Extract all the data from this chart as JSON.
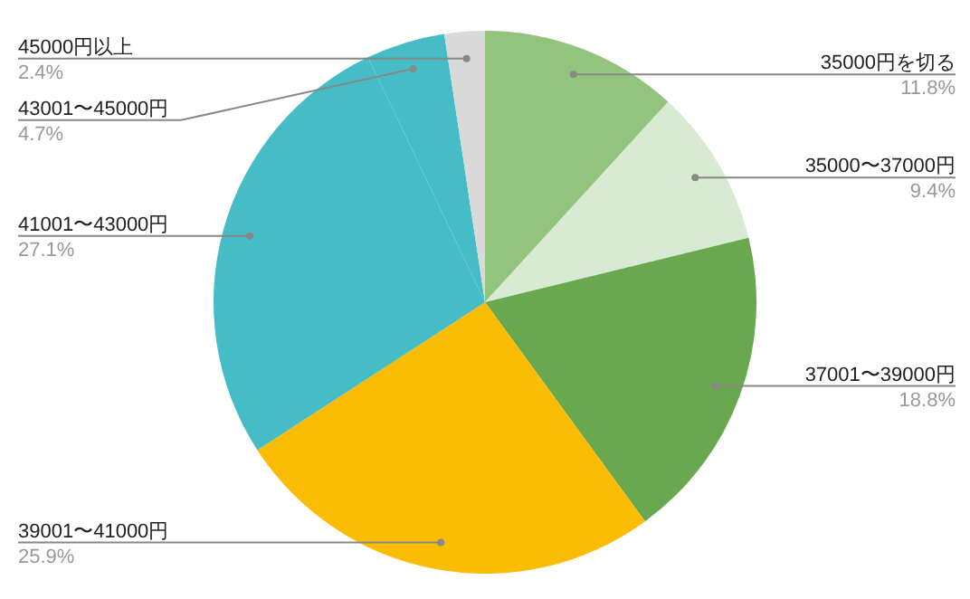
{
  "chart_data": {
    "type": "pie",
    "categories": [
      "35000円を切る",
      "35000〜37000円",
      "37001〜39000円",
      "39001〜41000円",
      "41001〜43000円",
      "43001〜45000円",
      "45000円以上"
    ],
    "values": [
      11.8,
      9.4,
      18.8,
      25.9,
      27.1,
      4.7,
      2.4
    ],
    "value_labels": [
      "11.8%",
      "9.4%",
      "18.8%",
      "25.9%",
      "27.1%",
      "4.7%",
      "2.4%"
    ],
    "colors": [
      "#93c47d",
      "#d9ead3",
      "#6aa84f",
      "#fbbc04",
      "#46bdc6",
      "#46bdc6",
      "#d9d9d9"
    ]
  }
}
